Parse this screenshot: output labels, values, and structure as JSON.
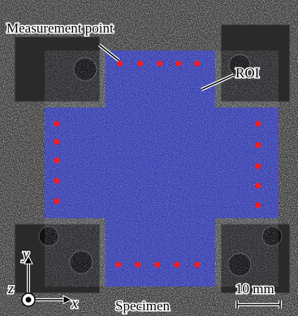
{
  "labels": {
    "measurement_point": "Measurement point",
    "roi": "ROI",
    "specimen": "Specimen",
    "scale": "10 mm"
  },
  "axes": {
    "x": "x",
    "y": "y",
    "z": "z"
  }
}
